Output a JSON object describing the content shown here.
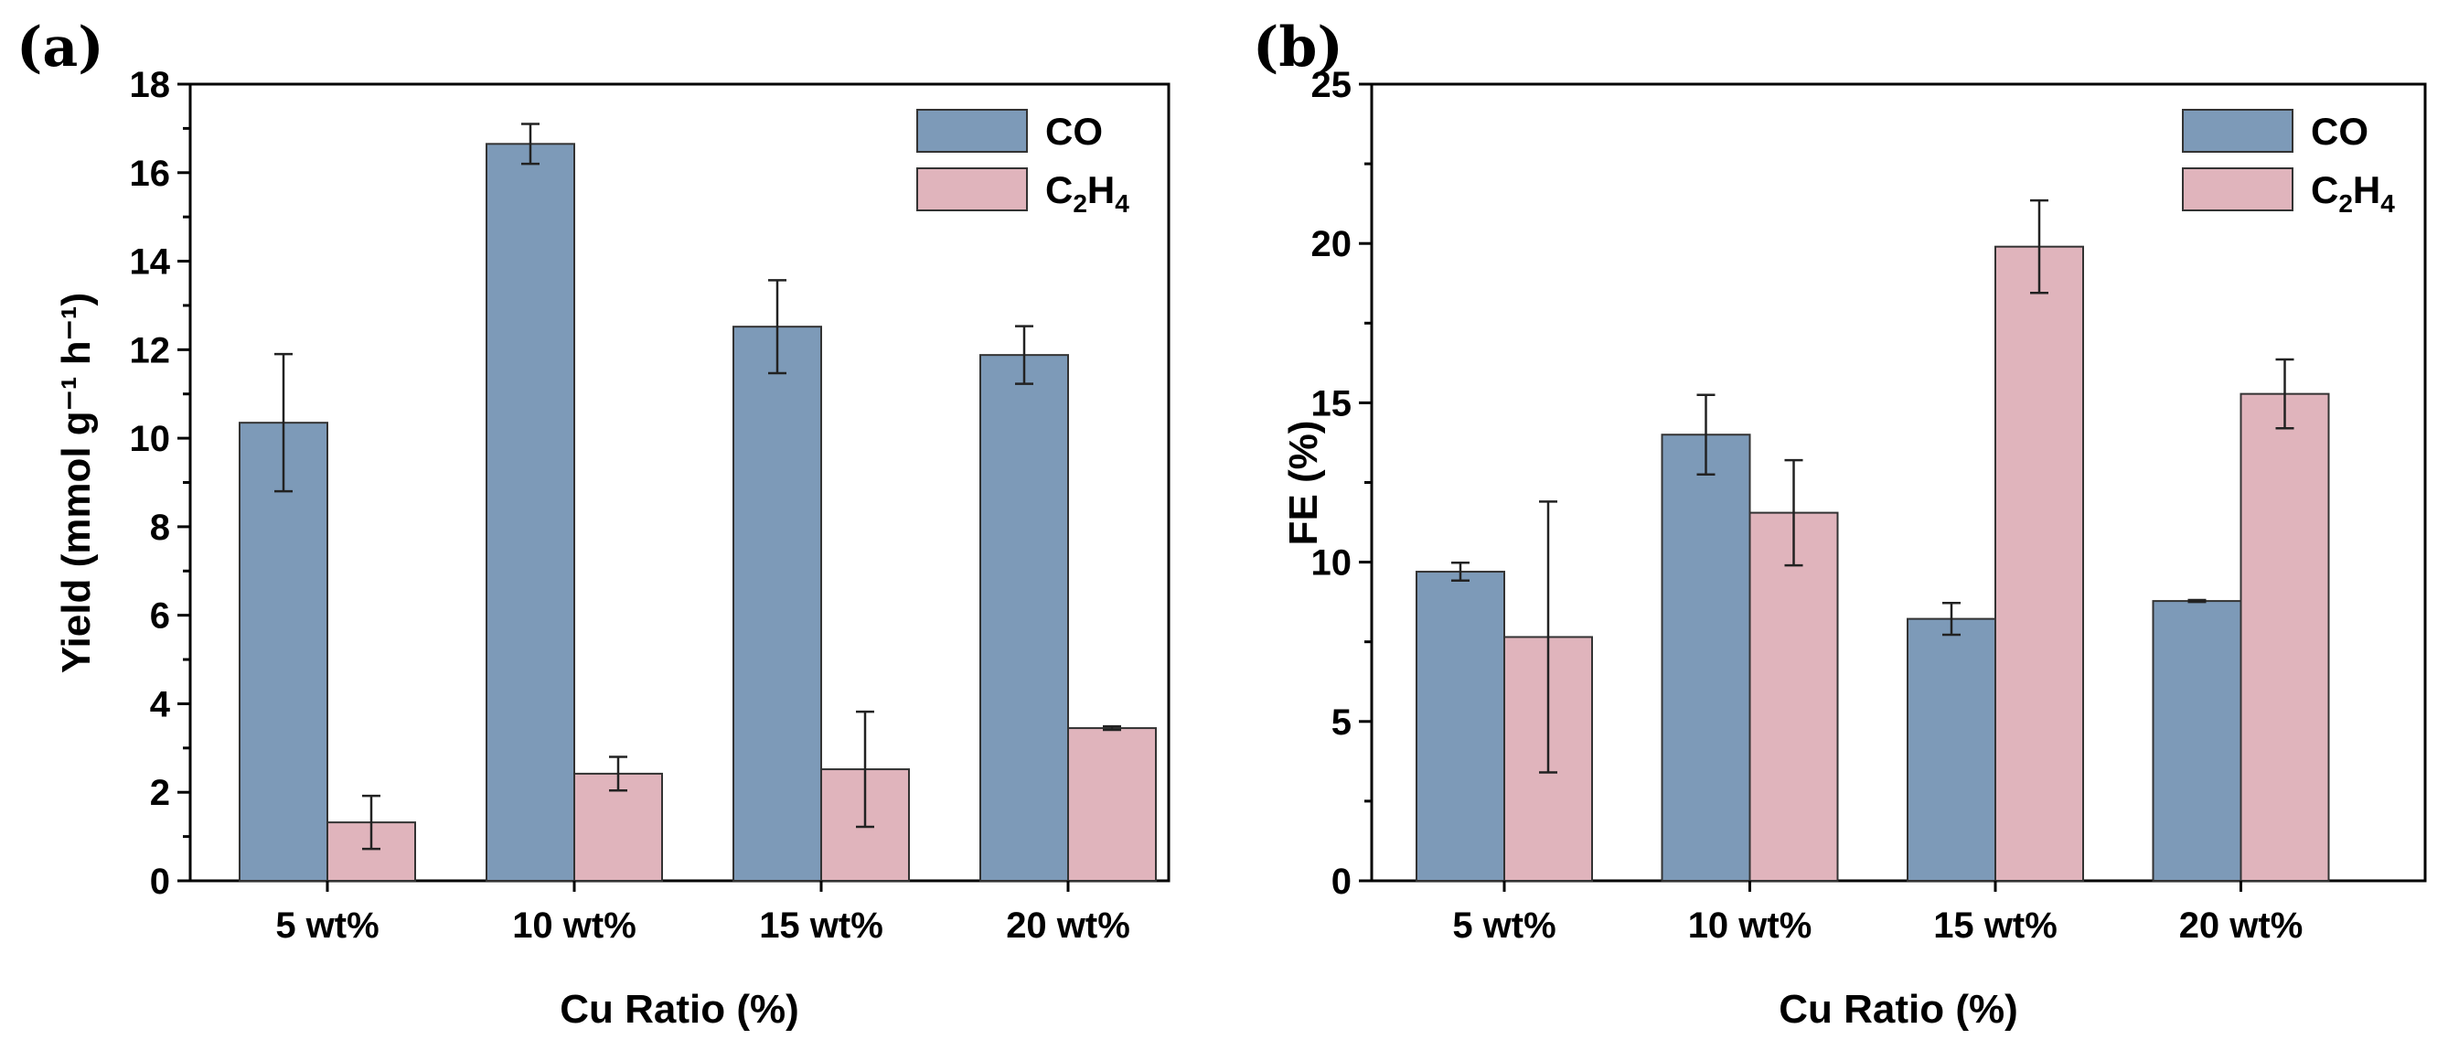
{
  "chart_data": [
    {
      "panel": "(a)",
      "type": "bar",
      "categories": [
        "5 wt%",
        "10 wt%",
        "15 wt%",
        "20 wt%"
      ],
      "series": [
        {
          "name": "CO",
          "color": "#7d9ab8",
          "values": [
            10.35,
            16.65,
            12.52,
            11.88
          ],
          "errors": [
            1.55,
            0.45,
            1.05,
            0.65
          ]
        },
        {
          "name": "C2H4",
          "color": "#e0b4bc",
          "values": [
            1.32,
            2.42,
            2.52,
            3.45
          ],
          "errors": [
            0.6,
            0.38,
            1.3,
            0.04
          ]
        }
      ],
      "xlabel": "Cu Ratio (%)",
      "ylabel": "Yield (mmol g⁻¹ h⁻¹)",
      "ylim": [
        0,
        18
      ],
      "yticks": [
        "0",
        "2",
        "4",
        "6",
        "8",
        "10",
        "12",
        "14",
        "16",
        "18"
      ],
      "legend": "top-right"
    },
    {
      "panel": "(b)",
      "type": "bar",
      "categories": [
        "5 wt%",
        "10 wt%",
        "15 wt%",
        "20 wt%"
      ],
      "series": [
        {
          "name": "CO",
          "color": "#7d9ab8",
          "values": [
            9.7,
            14.0,
            8.22,
            8.78
          ],
          "errors": [
            0.28,
            1.25,
            0.5,
            0.03
          ]
        },
        {
          "name": "C2H4",
          "color": "#e0b4bc",
          "values": [
            7.65,
            11.55,
            19.9,
            15.28
          ],
          "errors": [
            4.25,
            1.65,
            1.45,
            1.08
          ]
        }
      ],
      "xlabel": "Cu Ratio (%)",
      "ylabel": "FE (%)",
      "ylim": [
        0,
        25
      ],
      "yticks": [
        "0",
        "5",
        "10",
        "15",
        "20",
        "25"
      ],
      "legend": "top-right"
    }
  ]
}
